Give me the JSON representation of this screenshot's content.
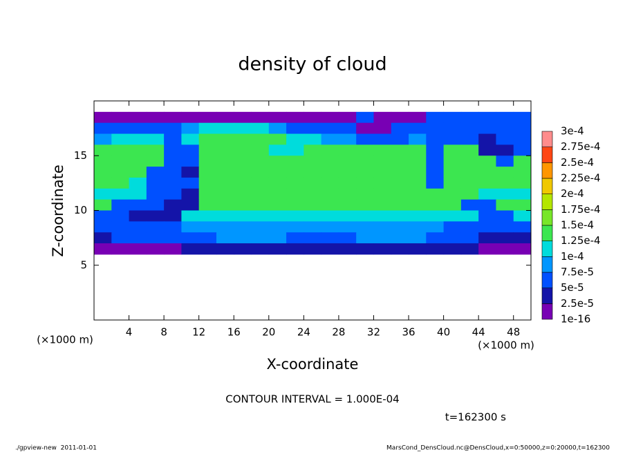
{
  "chart_data": {
    "type": "heatmap",
    "title": "density of cloud",
    "x_label": "X-coordinate",
    "y_label": "Z-coordinate",
    "x_unit": "(×1000 m)",
    "y_unit": "(×1000 m)",
    "x": [
      1,
      3,
      5,
      7,
      9,
      11,
      13,
      15,
      17,
      19,
      21,
      23,
      25,
      27,
      29,
      31,
      33,
      35,
      37,
      39,
      41,
      43,
      45,
      47,
      49
    ],
    "y": [
      18.5,
      17.5,
      16.5,
      15.5,
      14.5,
      13.5,
      12.5,
      11.5,
      10.5,
      9.5,
      8.5,
      7.5,
      6.5
    ],
    "values": [
      [
        1e-05,
        1e-05,
        1e-05,
        1e-05,
        1e-05,
        1e-05,
        1e-05,
        1e-05,
        1e-05,
        1e-05,
        1e-05,
        1e-05,
        1e-05,
        1e-05,
        1e-05,
        6e-05,
        1e-05,
        1e-05,
        1e-05,
        6e-05,
        6e-05,
        6e-05,
        6e-05,
        6e-05,
        6e-05
      ],
      [
        6e-05,
        6e-05,
        6e-05,
        6e-05,
        6e-05,
        8.5e-05,
        0.00011,
        0.00011,
        0.00011,
        0.00011,
        8.5e-05,
        6e-05,
        6e-05,
        6e-05,
        6e-05,
        1e-05,
        1e-05,
        6e-05,
        6e-05,
        6e-05,
        6e-05,
        6e-05,
        6e-05,
        6e-05,
        6e-05
      ],
      [
        8.5e-05,
        0.00011,
        0.00011,
        0.00011,
        6e-05,
        0.00011,
        0.00014,
        0.00014,
        0.00014,
        0.00014,
        0.00014,
        0.00011,
        0.00011,
        8.5e-05,
        8.5e-05,
        6e-05,
        6e-05,
        6e-05,
        8.5e-05,
        6e-05,
        6e-05,
        6e-05,
        3.5e-05,
        6e-05,
        6e-05
      ],
      [
        0.00014,
        0.00014,
        0.00014,
        0.00014,
        6e-05,
        6e-05,
        0.00014,
        0.00014,
        0.00014,
        0.00014,
        0.00011,
        0.00011,
        0.00014,
        0.00014,
        0.00014,
        0.00014,
        0.00014,
        0.00014,
        0.00014,
        6e-05,
        0.00014,
        0.00014,
        3.5e-05,
        3.5e-05,
        6e-05
      ],
      [
        0.00014,
        0.00014,
        0.00014,
        0.00014,
        6e-05,
        6e-05,
        0.00014,
        0.00014,
        0.00014,
        0.00014,
        0.00014,
        0.00014,
        0.00014,
        0.00014,
        0.00014,
        0.00014,
        0.00014,
        0.00014,
        0.00014,
        6e-05,
        0.00014,
        0.00014,
        0.00014,
        6e-05,
        0.00014
      ],
      [
        0.00014,
        0.00014,
        0.00014,
        6e-05,
        6e-05,
        3.5e-05,
        0.00014,
        0.00014,
        0.00014,
        0.00014,
        0.00014,
        0.00014,
        0.00014,
        0.00014,
        0.00014,
        0.00014,
        0.00014,
        0.00014,
        0.00014,
        6e-05,
        0.00014,
        0.00014,
        0.00014,
        0.00014,
        0.00014
      ],
      [
        0.00014,
        0.00014,
        0.00011,
        6e-05,
        6e-05,
        6e-05,
        0.00014,
        0.00014,
        0.00014,
        0.00014,
        0.00014,
        0.00014,
        0.00014,
        0.00014,
        0.00014,
        0.00014,
        0.00014,
        0.00014,
        0.00014,
        6e-05,
        0.00014,
        0.00014,
        0.00014,
        0.00014,
        0.00014
      ],
      [
        0.00011,
        0.00011,
        0.00011,
        6e-05,
        6e-05,
        3.5e-05,
        0.00014,
        0.00014,
        0.00014,
        0.00014,
        0.00014,
        0.00014,
        0.00014,
        0.00014,
        0.00014,
        0.00014,
        0.00014,
        0.00014,
        0.00014,
        0.00014,
        0.00014,
        0.00014,
        0.00011,
        0.00011,
        0.00011
      ],
      [
        0.00014,
        6e-05,
        6e-05,
        6e-05,
        3.5e-05,
        3.5e-05,
        0.00014,
        0.00014,
        0.00014,
        0.00014,
        0.00014,
        0.00014,
        0.00014,
        0.00014,
        0.00014,
        0.00014,
        0.00014,
        0.00014,
        0.00014,
        0.00014,
        0.00014,
        6e-05,
        6e-05,
        0.00014,
        0.00014
      ],
      [
        6e-05,
        6e-05,
        3.5e-05,
        3.5e-05,
        3.5e-05,
        0.00011,
        0.00011,
        0.00011,
        0.00011,
        0.00011,
        0.00011,
        0.00011,
        0.00011,
        0.00011,
        0.00011,
        0.00011,
        0.00011,
        0.00011,
        0.00011,
        0.00011,
        0.00011,
        0.00011,
        6e-05,
        6e-05,
        0.00011
      ],
      [
        6e-05,
        6e-05,
        6e-05,
        6e-05,
        6e-05,
        8.5e-05,
        8.5e-05,
        8.5e-05,
        8.5e-05,
        8.5e-05,
        8.5e-05,
        8.5e-05,
        8.5e-05,
        8.5e-05,
        8.5e-05,
        8.5e-05,
        8.5e-05,
        8.5e-05,
        8.5e-05,
        8.5e-05,
        6e-05,
        6e-05,
        6e-05,
        6e-05,
        6e-05
      ],
      [
        3.5e-05,
        6e-05,
        6e-05,
        6e-05,
        6e-05,
        6e-05,
        6e-05,
        8.5e-05,
        8.5e-05,
        8.5e-05,
        8.5e-05,
        6e-05,
        6e-05,
        6e-05,
        6e-05,
        8.5e-05,
        8.5e-05,
        8.5e-05,
        8.5e-05,
        6e-05,
        6e-05,
        6e-05,
        3.5e-05,
        3.5e-05,
        3.5e-05
      ],
      [
        1e-05,
        1e-05,
        1e-05,
        1e-05,
        1e-05,
        3.5e-05,
        3.5e-05,
        3.5e-05,
        3.5e-05,
        3.5e-05,
        3.5e-05,
        3.5e-05,
        3.5e-05,
        3.5e-05,
        3.5e-05,
        3.5e-05,
        3.5e-05,
        3.5e-05,
        3.5e-05,
        3.5e-05,
        3.5e-05,
        3.5e-05,
        1e-05,
        1e-05,
        1e-05
      ]
    ],
    "xlim": [
      0,
      50
    ],
    "ylim": [
      0,
      20
    ],
    "xticks": [
      4,
      8,
      12,
      16,
      20,
      24,
      28,
      32,
      36,
      40,
      44,
      48
    ],
    "yticks": [
      5,
      10,
      15
    ],
    "colorbar": {
      "levels": [
        1e-16,
        {
          "value": 2.5e-05,
          "label": "2.5e-5"
        },
        {
          "value": 5e-05,
          "label": "5e-5"
        },
        {
          "value": 7.5e-05,
          "label": "7.5e-5"
        },
        {
          "value": 0.0001,
          "label": "1e-4"
        },
        {
          "value": 0.000125,
          "label": "1.25e-4"
        },
        {
          "value": 0.00015,
          "label": "1.5e-4"
        },
        {
          "value": 0.000175,
          "label": "1.75e-4"
        },
        {
          "value": 0.0002,
          "label": "2e-4"
        },
        {
          "value": 0.000225,
          "label": "2.25e-4"
        },
        {
          "value": 0.00025,
          "label": "2.5e-4"
        },
        {
          "value": 0.000275,
          "label": "2.75e-4"
        },
        {
          "value": 0.0003,
          "label": "3e-4"
        }
      ],
      "colors": [
        "#7800b4",
        "#1414a8",
        "#0050ff",
        "#0096ff",
        "#00dcdc",
        "#3ce650",
        "#78e628",
        "#b4e600",
        "#f0c800",
        "#ff9600",
        "#ff4614",
        "#ff8c8c"
      ]
    },
    "annotations": [
      "CONTOUR INTERVAL = 1.000E-04",
      "t=162300 s"
    ],
    "footer_left": "./gpview-new  2011-01-01",
    "footer_right": "MarsCond_DensCloud.nc@DensCloud,x=0:50000,z=0:20000,t=162300"
  }
}
